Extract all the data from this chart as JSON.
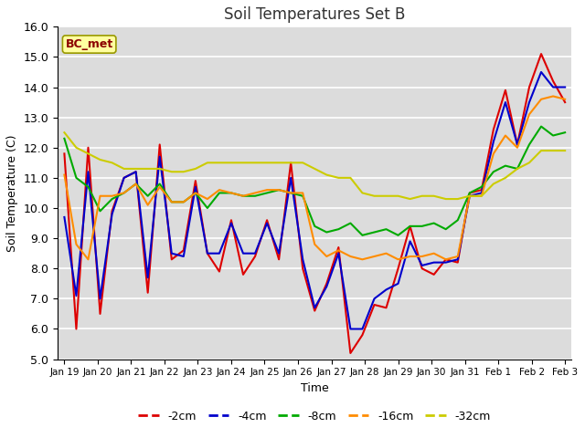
{
  "title": "Soil Temperatures Set B",
  "xlabel": "Time",
  "ylabel": "Soil Temperature (C)",
  "ylim": [
    5.0,
    16.0
  ],
  "yticks": [
    5.0,
    6.0,
    7.0,
    8.0,
    9.0,
    10.0,
    11.0,
    12.0,
    13.0,
    14.0,
    15.0,
    16.0
  ],
  "annotation": "BC_met",
  "annotation_color": "#8B0000",
  "annotation_bg": "#FFFFA0",
  "annotation_edge": "#999900",
  "bg_color": "#DCDCDC",
  "fig_bg": "#FFFFFF",
  "line_colors": {
    "-2cm": "#DD0000",
    "-4cm": "#0000CC",
    "-8cm": "#00AA00",
    "-16cm": "#FF8C00",
    "-32cm": "#CCCC00"
  },
  "line_width": 1.5,
  "x_labels": [
    "Jan 19",
    "Jan 20",
    "Jan 21",
    "Jan 22",
    "Jan 23",
    "Jan 24",
    "Jan 25",
    "Jan 26",
    "Jan 27",
    "Jan 28",
    "Jan 29",
    "Jan 30",
    "Jan 31",
    "Feb 1",
    "Feb 2",
    "Feb 3"
  ],
  "depths": [
    "-2cm",
    "-4cm",
    "-8cm",
    "-16cm",
    "-32cm"
  ],
  "data": {
    "-2cm": [
      11.8,
      6.0,
      12.0,
      6.5,
      9.9,
      11.0,
      11.2,
      7.2,
      12.1,
      8.3,
      8.6,
      10.9,
      8.5,
      7.9,
      9.6,
      7.8,
      8.4,
      9.6,
      8.3,
      11.5,
      8.0,
      6.6,
      7.5,
      8.7,
      5.2,
      5.8,
      6.8,
      6.7,
      8.0,
      9.4,
      8.0,
      7.8,
      8.3,
      8.2,
      10.5,
      10.6,
      12.6,
      13.9,
      12.1,
      14.0,
      15.1,
      14.2,
      13.5
    ],
    "-4cm": [
      9.7,
      7.1,
      11.2,
      7.0,
      9.8,
      11.0,
      11.2,
      7.7,
      11.7,
      8.5,
      8.4,
      10.7,
      8.5,
      8.5,
      9.5,
      8.5,
      8.5,
      9.5,
      8.5,
      11.0,
      8.3,
      6.7,
      7.4,
      8.5,
      6.0,
      6.0,
      7.0,
      7.3,
      7.5,
      8.9,
      8.1,
      8.2,
      8.2,
      8.3,
      10.4,
      10.5,
      12.2,
      13.5,
      12.1,
      13.5,
      14.5,
      14.0,
      14.0
    ],
    "-8cm": [
      12.3,
      11.0,
      10.7,
      9.9,
      10.3,
      10.5,
      10.8,
      10.4,
      10.8,
      10.2,
      10.2,
      10.5,
      10.0,
      10.5,
      10.5,
      10.4,
      10.4,
      10.5,
      10.6,
      10.5,
      10.4,
      9.4,
      9.2,
      9.3,
      9.5,
      9.1,
      9.2,
      9.3,
      9.1,
      9.4,
      9.4,
      9.5,
      9.3,
      9.6,
      10.5,
      10.7,
      11.2,
      11.4,
      11.3,
      12.1,
      12.7,
      12.4,
      12.5
    ],
    "-16cm": [
      11.1,
      8.8,
      8.3,
      10.4,
      10.4,
      10.5,
      10.8,
      10.1,
      10.7,
      10.2,
      10.2,
      10.5,
      10.3,
      10.6,
      10.5,
      10.4,
      10.5,
      10.6,
      10.6,
      10.5,
      10.5,
      8.8,
      8.4,
      8.6,
      8.4,
      8.3,
      8.4,
      8.5,
      8.3,
      8.4,
      8.4,
      8.5,
      8.3,
      8.4,
      10.4,
      10.4,
      11.8,
      12.4,
      12.0,
      13.1,
      13.6,
      13.7,
      13.6
    ],
    "-32cm": [
      12.5,
      12.0,
      11.8,
      11.6,
      11.5,
      11.3,
      11.3,
      11.3,
      11.3,
      11.2,
      11.2,
      11.3,
      11.5,
      11.5,
      11.5,
      11.5,
      11.5,
      11.5,
      11.5,
      11.5,
      11.5,
      11.3,
      11.1,
      11.0,
      11.0,
      10.5,
      10.4,
      10.4,
      10.4,
      10.3,
      10.4,
      10.4,
      10.3,
      10.3,
      10.4,
      10.4,
      10.8,
      11.0,
      11.3,
      11.5,
      11.9,
      11.9,
      11.9
    ]
  }
}
